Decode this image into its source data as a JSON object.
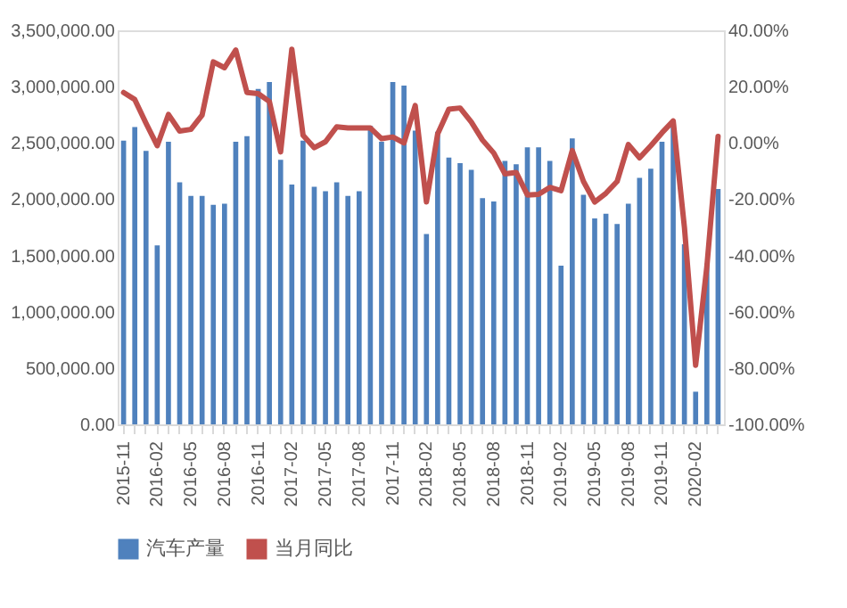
{
  "chart_data": {
    "type": "bar",
    "categories": [
      "2015-11",
      null,
      null,
      "2016-02",
      null,
      null,
      "2016-05",
      null,
      null,
      "2016-08",
      null,
      null,
      "2016-11",
      null,
      null,
      "2017-02",
      null,
      null,
      "2017-05",
      null,
      null,
      "2017-08",
      null,
      null,
      "2017-11",
      null,
      null,
      "2018-02",
      null,
      null,
      "2018-05",
      null,
      null,
      "2018-08",
      null,
      null,
      "2018-11",
      null,
      null,
      "2019-02",
      null,
      null,
      "2019-05",
      null,
      null,
      "2019-08",
      null,
      null,
      "2019-11",
      null,
      null,
      "2020-02",
      null,
      null
    ],
    "series": [
      {
        "name": "汽车产量",
        "color": "#4f81bd",
        "values": [
          2520000,
          2640000,
          2430000,
          1590000,
          2510000,
          2150000,
          2030000,
          2030000,
          1950000,
          1960000,
          2510000,
          2560000,
          2980000,
          3040000,
          2350000,
          2130000,
          2520000,
          2110000,
          2070000,
          2150000,
          2030000,
          2070000,
          2650000,
          2510000,
          3040000,
          3010000,
          2610000,
          1690000,
          2600000,
          2370000,
          2320000,
          2260000,
          2010000,
          1980000,
          2340000,
          2310000,
          2460000,
          2460000,
          2340000,
          1410000,
          2540000,
          2040000,
          1830000,
          1870000,
          1780000,
          1960000,
          2190000,
          2270000,
          2510000,
          2690000,
          1600000,
          290000,
          1430000,
          2090000
        ]
      },
      {
        "name": "当月同比",
        "type": "line",
        "axis": "y2",
        "color": "#c0504d",
        "values": [
          17.9,
          15.4,
          7,
          -1,
          10.1,
          4.2,
          4.8,
          9.9,
          28.8,
          26.7,
          33,
          17.9,
          17.5,
          14.7,
          -3.2,
          33.3,
          2.7,
          -1.7,
          0.4,
          5.7,
          5.3,
          5.3,
          5.3,
          1.5,
          2.1,
          0,
          13.3,
          -21,
          3.2,
          12,
          12.4,
          7.4,
          1,
          -3.6,
          -11,
          -10.5,
          -18.5,
          -18.3,
          -15.8,
          -17,
          -2.7,
          -13.7,
          -21,
          -17.9,
          -13.7,
          -0.6,
          -5.3,
          -1,
          3.6,
          7.8,
          -30,
          -79,
          -44,
          2.3
        ]
      }
    ],
    "ylim": [
      0,
      3500000
    ],
    "yticks": [
      {
        "value": 0,
        "label": "0.00"
      },
      {
        "value": 500000,
        "label": "500,000.00"
      },
      {
        "value": 1000000,
        "label": "1,000,000.00"
      },
      {
        "value": 1500000,
        "label": "1,500,000.00"
      },
      {
        "value": 2000000,
        "label": "2,000,000.00"
      },
      {
        "value": 2500000,
        "label": "2,500,000.00"
      },
      {
        "value": 3000000,
        "label": "3,000,000.00"
      },
      {
        "value": 3500000,
        "label": "3,500,000.00"
      }
    ],
    "y2lim": [
      -100,
      40
    ],
    "y2ticks": [
      {
        "value": -100,
        "label": "-100.00%"
      },
      {
        "value": -80,
        "label": "-80.00%"
      },
      {
        "value": -60,
        "label": "-60.00%"
      },
      {
        "value": -40,
        "label": "-40.00%"
      },
      {
        "value": -20,
        "label": "-20.00%"
      },
      {
        "value": 0,
        "label": "0.00%"
      },
      {
        "value": 20,
        "label": "20.00%"
      },
      {
        "value": 40,
        "label": "40.00%"
      }
    ],
    "grid": false,
    "legend": "bottom"
  }
}
